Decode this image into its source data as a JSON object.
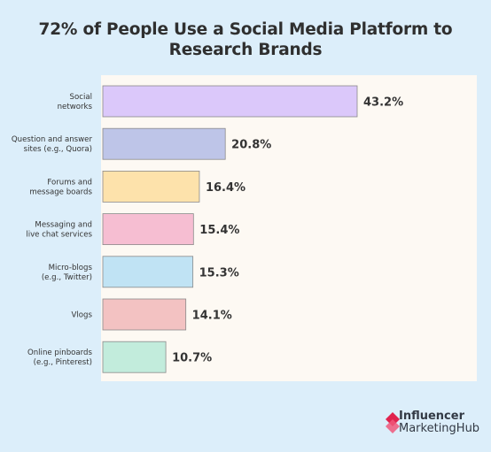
{
  "title_line1": "72% of People Use a Social Media Platform to",
  "title_line2": "Research Brands",
  "brand": {
    "line1": "Influencer",
    "line2": "MarketingHub",
    "logo_icon": "influencer-marketing-hub-logo"
  },
  "colors": {
    "background": "#dceefa",
    "plot_background": "#fdf9f3"
  },
  "chart_data": {
    "type": "bar",
    "orientation": "horizontal",
    "title": "72% of People Use a Social Media Platform to Research Brands",
    "categories": [
      [
        "Social",
        "networks"
      ],
      [
        "Question and answer",
        "sites (e.g., Quora)"
      ],
      [
        "Forums and",
        "message boards"
      ],
      [
        "Messaging and",
        "live chat services"
      ],
      [
        "Micro-blogs",
        "(e.g., Twitter)"
      ],
      [
        "Vlogs"
      ],
      [
        "Online pinboards",
        "(e.g., Pinterest)"
      ]
    ],
    "values": [
      43.2,
      20.8,
      16.4,
      15.4,
      15.3,
      14.1,
      10.7
    ],
    "value_labels": [
      "43.2%",
      "20.8%",
      "16.4%",
      "15.4%",
      "15.3%",
      "14.1%",
      "10.7%"
    ],
    "colors": [
      "#dbc8fa",
      "#bec5e8",
      "#fde2ab",
      "#f6bed2",
      "#c0e3f4",
      "#f3c2c2",
      "#c2ecdc"
    ],
    "xlim": [
      0,
      43.2
    ],
    "grid": false,
    "legend": "none"
  }
}
